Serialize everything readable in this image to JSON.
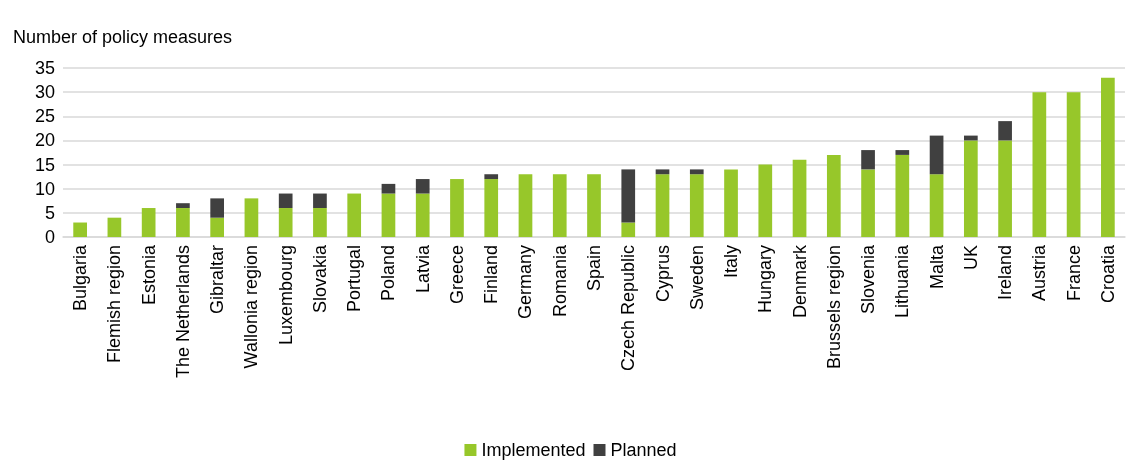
{
  "chart_data": {
    "type": "bar",
    "ylabel": "Number of policy measures",
    "stacked": true,
    "grid": "y",
    "legend": "bottom",
    "categories": [
      "Bulgaria",
      "Flemish region",
      "Estonia",
      "The Netherlands",
      "Gibraltar",
      "Wallonia region",
      "Luxembourg",
      "Slovakia",
      "Portugal",
      "Poland",
      "Latvia",
      "Greece",
      "Finland",
      "Germany",
      "Romania",
      "Spain",
      "Czech Republic",
      "Cyprus",
      "Sweden",
      "Italy",
      "Hungary",
      "Denmark",
      "Brussels region",
      "Slovenia",
      "Lithuania",
      "Malta",
      "UK",
      "Ireland",
      "Austria",
      "France",
      "Croatia"
    ],
    "series": [
      {
        "name": "Implemented",
        "color": "#97c72a",
        "values": [
          3,
          4,
          6,
          6,
          4,
          8,
          6,
          6,
          9,
          9,
          9,
          12,
          12,
          13,
          13,
          13,
          3,
          13,
          13,
          14,
          15,
          16,
          17,
          14,
          17,
          13,
          20,
          20,
          30,
          30,
          33
        ]
      },
      {
        "name": "Planned",
        "color": "#404040",
        "values": [
          0,
          0,
          0,
          1,
          4,
          0,
          3,
          3,
          0,
          2,
          3,
          0,
          1,
          0,
          0,
          0,
          11,
          1,
          1,
          0,
          0,
          0,
          0,
          4,
          1,
          8,
          1,
          4,
          0,
          0,
          0
        ]
      }
    ],
    "ylim": [
      0,
      35
    ],
    "yticks": [
      0,
      5,
      10,
      15,
      20,
      25,
      30,
      35
    ]
  }
}
